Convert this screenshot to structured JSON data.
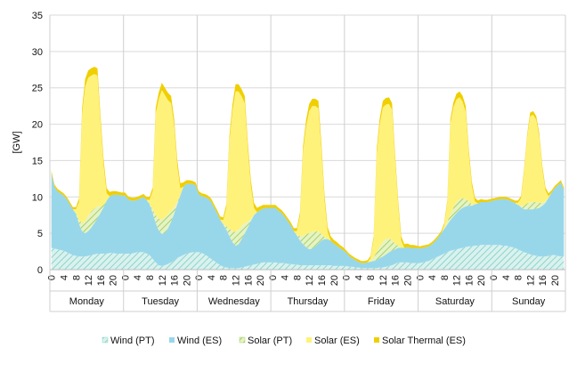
{
  "chart_data": {
    "type": "area",
    "stacked": true,
    "ylabel": "[GW]",
    "ylim": [
      0,
      35
    ],
    "y_ticks": [
      0,
      5,
      10,
      15,
      20,
      25,
      30,
      35
    ],
    "hour_ticks": [
      "0",
      "4",
      "8",
      "12",
      "16",
      "20"
    ],
    "days": [
      "Monday",
      "Tuesday",
      "Wednesday",
      "Thursday",
      "Friday",
      "Saturday",
      "Sunday"
    ],
    "grid": "horizontal and day separators",
    "legend_position": "bottom",
    "colors": {
      "wind_pt": "#bfe9e6",
      "wind_es": "#98d7ea",
      "solar_pt": "#cde6a2",
      "solar_es": "#fff27a",
      "solar_thermal_es": "#f0cf00"
    },
    "x_hours": [
      0,
      1,
      2,
      3,
      4,
      5,
      6,
      7,
      8,
      9,
      10,
      11,
      12,
      13,
      14,
      15,
      16,
      17,
      18,
      19,
      20,
      21,
      22,
      23
    ],
    "series": [
      {
        "name": "Wind (PT)",
        "color": "#bfe9e6",
        "values": [
          [
            3.0,
            2.9,
            2.8,
            2.7,
            2.6,
            2.4,
            2.2,
            2.0,
            1.9,
            1.8,
            1.8,
            1.8,
            1.9,
            2.0,
            2.1,
            2.2,
            2.2,
            2.2,
            2.2,
            2.3,
            2.3,
            2.2,
            2.2,
            2.2
          ],
          [
            2.2,
            2.2,
            2.2,
            2.3,
            2.4,
            2.4,
            2.4,
            2.2,
            2.0,
            1.5,
            1.0,
            0.6,
            0.5,
            0.6,
            0.8,
            1.0,
            1.3,
            1.6,
            1.8,
            2.0,
            2.2,
            2.3,
            2.4,
            2.4
          ],
          [
            2.4,
            2.3,
            2.1,
            1.8,
            1.5,
            1.2,
            0.9,
            0.6,
            0.4,
            0.3,
            0.2,
            0.2,
            0.2,
            0.2,
            0.3,
            0.4,
            0.5,
            0.6,
            0.7,
            0.8,
            0.9,
            1.0,
            1.0,
            1.0
          ],
          [
            1.0,
            1.0,
            0.9,
            0.9,
            0.9,
            0.8,
            0.8,
            0.7,
            0.7,
            0.6,
            0.6,
            0.6,
            0.6,
            0.6,
            0.6,
            0.6,
            0.6,
            0.6,
            0.6,
            0.6,
            0.5,
            0.5,
            0.5,
            0.5
          ],
          [
            0.5,
            0.4,
            0.4,
            0.3,
            0.3,
            0.2,
            0.2,
            0.2,
            0.2,
            0.2,
            0.2,
            0.3,
            0.3,
            0.4,
            0.5,
            0.6,
            0.8,
            1.0,
            1.0,
            1.0,
            1.0,
            0.9,
            0.9,
            0.9
          ],
          [
            0.9,
            1.0,
            1.1,
            1.2,
            1.4,
            1.6,
            1.8,
            2.0,
            2.2,
            2.4,
            2.6,
            2.7,
            2.8,
            2.9,
            3.0,
            3.1,
            3.2,
            3.2,
            3.3,
            3.3,
            3.4,
            3.4,
            3.4,
            3.4
          ],
          [
            3.4,
            3.4,
            3.4,
            3.3,
            3.3,
            3.2,
            3.1,
            3.0,
            2.8,
            2.6,
            2.4,
            2.3,
            2.1,
            2.0,
            1.9,
            1.8,
            1.8,
            1.8,
            1.9,
            2.0,
            2.0,
            1.9,
            1.8,
            1.8
          ]
        ]
      },
      {
        "name": "Wind (ES)",
        "color": "#98d7ea",
        "values": [
          [
            10.3,
            8.5,
            8.0,
            7.8,
            7.6,
            7.3,
            6.8,
            6.3,
            5.8,
            4.5,
            3.5,
            3.2,
            3.4,
            3.8,
            4.3,
            4.9,
            5.6,
            6.4,
            7.3,
            7.8,
            8.0,
            8.1,
            8.1,
            8.0
          ],
          [
            8.0,
            7.5,
            7.3,
            7.2,
            7.2,
            7.4,
            7.6,
            7.4,
            7.0,
            6.3,
            5.4,
            4.8,
            4.4,
            4.5,
            4.9,
            5.6,
            6.4,
            7.4,
            8.4,
            9.4,
            9.6,
            9.5,
            9.4,
            9.2
          ],
          [
            8.0,
            7.8,
            7.9,
            8.0,
            7.9,
            7.4,
            6.9,
            6.3,
            5.8,
            5.2,
            4.4,
            3.6,
            3.1,
            3.3,
            3.9,
            4.6,
            5.3,
            6.1,
            6.8,
            7.1,
            7.3,
            7.4,
            7.5,
            7.5
          ],
          [
            7.5,
            7.5,
            7.2,
            6.9,
            6.4,
            5.9,
            5.3,
            4.6,
            4.0,
            3.4,
            2.9,
            2.5,
            2.2,
            2.3,
            2.6,
            3.0,
            3.4,
            3.6,
            3.6,
            3.4,
            3.1,
            2.8,
            2.5,
            2.2
          ],
          [
            1.9,
            1.5,
            1.2,
            1.0,
            0.8,
            0.7,
            0.7,
            0.8,
            0.9,
            1.0,
            1.1,
            1.3,
            1.5,
            1.7,
            1.9,
            2.0,
            2.0,
            2.0,
            2.0,
            2.0,
            2.1,
            2.1,
            2.1,
            2.1
          ],
          [
            2.0,
            2.0,
            2.0,
            2.0,
            2.1,
            2.3,
            2.6,
            3.0,
            3.4,
            3.8,
            4.2,
            4.6,
            5.0,
            5.3,
            5.5,
            5.6,
            5.6,
            5.6,
            5.7,
            5.8,
            5.9,
            5.9,
            5.9,
            6.0
          ],
          [
            6.1,
            6.2,
            6.3,
            6.4,
            6.4,
            6.4,
            6.3,
            6.2,
            6.1,
            6.0,
            5.9,
            6.0,
            6.2,
            6.3,
            6.5,
            6.7,
            7.0,
            7.4,
            8.0,
            8.6,
            9.2,
            9.7,
            10.2,
            9.2
          ]
        ]
      },
      {
        "name": "Solar (PT)",
        "color": "#cde6a2",
        "values": [
          [
            0,
            0,
            0,
            0,
            0,
            0,
            0,
            0,
            0.1,
            0.5,
            1.1,
            1.7,
            2.1,
            2.2,
            2.0,
            1.6,
            0.9,
            0.3,
            0,
            0,
            0,
            0,
            0,
            0
          ],
          [
            0,
            0,
            0,
            0,
            0,
            0,
            0,
            0,
            0.1,
            0.5,
            1.1,
            1.6,
            2.0,
            2.1,
            1.9,
            1.5,
            0.9,
            0.3,
            0,
            0,
            0,
            0,
            0,
            0
          ],
          [
            0,
            0,
            0,
            0,
            0,
            0,
            0,
            0,
            0.1,
            0.5,
            1.0,
            1.5,
            1.9,
            2.0,
            1.8,
            1.4,
            0.8,
            0.3,
            0,
            0,
            0,
            0,
            0,
            0
          ],
          [
            0,
            0,
            0,
            0,
            0,
            0,
            0,
            0,
            0.1,
            0.6,
            1.2,
            1.8,
            2.2,
            2.3,
            2.1,
            1.6,
            0.9,
            0.3,
            0,
            0,
            0,
            0,
            0,
            0
          ],
          [
            0,
            0,
            0,
            0,
            0,
            0,
            0,
            0,
            0.1,
            0.5,
            1.1,
            1.6,
            2.0,
            2.1,
            1.9,
            1.4,
            0.8,
            0.3,
            0,
            0,
            0,
            0,
            0,
            0
          ],
          [
            0,
            0,
            0,
            0,
            0,
            0,
            0,
            0,
            0.1,
            0.4,
            0.8,
            1.2,
            1.5,
            1.5,
            1.3,
            1.0,
            0.6,
            0.2,
            0,
            0,
            0,
            0,
            0,
            0
          ],
          [
            0,
            0,
            0,
            0,
            0,
            0,
            0,
            0,
            0,
            0.2,
            0.5,
            0.8,
            1.0,
            1.0,
            0.9,
            0.7,
            0.4,
            0.2,
            0,
            0,
            0,
            0,
            0,
            0
          ]
        ]
      },
      {
        "name": "Solar (ES)",
        "color": "#fff27a",
        "values": [
          [
            0,
            0,
            0,
            0,
            0,
            0,
            0,
            0,
            0.5,
            2.5,
            15.0,
            18.5,
            19.0,
            18.7,
            18.5,
            18.0,
            11.5,
            5.5,
            1.0,
            0,
            0,
            0,
            0,
            0
          ],
          [
            0,
            0,
            0,
            0,
            0,
            0,
            0,
            0,
            0.5,
            2.5,
            14.0,
            16.5,
            17.8,
            16.8,
            15.7,
            14.8,
            11.2,
            5.0,
            1.0,
            0,
            0,
            0,
            0,
            0
          ],
          [
            0,
            0,
            0,
            0,
            0,
            0,
            0,
            0,
            0.5,
            2.5,
            12.0,
            16.5,
            19.3,
            19.0,
            17.8,
            16.5,
            10.0,
            4.5,
            1.0,
            0,
            0,
            0,
            0,
            0
          ],
          [
            0,
            0,
            0,
            0,
            0,
            0,
            0,
            0,
            0.5,
            2.8,
            11.5,
            14.8,
            16.8,
            17.3,
            17.2,
            17.0,
            11.5,
            5.0,
            1.0,
            0,
            0,
            0,
            0,
            0
          ],
          [
            0,
            0,
            0,
            0,
            0,
            0,
            0,
            0,
            0.4,
            2.5,
            13.5,
            16.8,
            18.5,
            18.5,
            18.5,
            18.0,
            11.5,
            5.5,
            1.0,
            0,
            0,
            0,
            0,
            0
          ],
          [
            0,
            0,
            0,
            0,
            0,
            0,
            0,
            0,
            0.4,
            2.5,
            12.5,
            13.8,
            14.1,
            14.0,
            13.3,
            12.0,
            6.5,
            2.5,
            0.4,
            0,
            0,
            0,
            0,
            0
          ],
          [
            0,
            0,
            0,
            0,
            0,
            0,
            0,
            0,
            0.3,
            1.0,
            4.5,
            9.0,
            11.8,
            12.0,
            11.3,
            9.0,
            4.5,
            1.5,
            0.2,
            0,
            0,
            0,
            0,
            0
          ]
        ]
      },
      {
        "name": "Solar Thermal (ES)",
        "color": "#f0cf00",
        "values": [
          [
            0.3,
            0.3,
            0.3,
            0.3,
            0.3,
            0.3,
            0.3,
            0.3,
            0.3,
            0.5,
            0.8,
            1.0,
            1.0,
            1.0,
            1.0,
            1.0,
            0.9,
            0.8,
            0.7,
            0.6,
            0.5,
            0.5,
            0.4,
            0.4
          ],
          [
            0.4,
            0.4,
            0.4,
            0.4,
            0.4,
            0.4,
            0.4,
            0.4,
            0.4,
            0.5,
            0.8,
            0.9,
            1.0,
            1.0,
            1.0,
            1.0,
            0.9,
            0.8,
            0.7,
            0.6,
            0.5,
            0.5,
            0.4,
            0.4
          ],
          [
            0.4,
            0.4,
            0.4,
            0.4,
            0.4,
            0.4,
            0.4,
            0.4,
            0.4,
            0.5,
            0.8,
            0.9,
            1.0,
            1.0,
            1.0,
            1.0,
            0.9,
            0.8,
            0.7,
            0.6,
            0.5,
            0.5,
            0.4,
            0.4
          ],
          [
            0.4,
            0.4,
            0.4,
            0.4,
            0.4,
            0.4,
            0.4,
            0.4,
            0.4,
            0.5,
            0.8,
            0.9,
            1.0,
            1.0,
            1.0,
            1.0,
            0.9,
            0.8,
            0.7,
            0.6,
            0.5,
            0.5,
            0.4,
            0.4
          ],
          [
            0.3,
            0.3,
            0.3,
            0.3,
            0.3,
            0.3,
            0.3,
            0.3,
            0.3,
            0.4,
            0.7,
            0.8,
            0.9,
            0.9,
            0.9,
            0.9,
            0.8,
            0.7,
            0.6,
            0.5,
            0.5,
            0.4,
            0.4,
            0.3
          ],
          [
            0.3,
            0.3,
            0.3,
            0.3,
            0.3,
            0.3,
            0.3,
            0.3,
            0.3,
            0.4,
            0.6,
            0.7,
            0.8,
            0.8,
            0.8,
            0.8,
            0.7,
            0.6,
            0.5,
            0.4,
            0.4,
            0.3,
            0.3,
            0.3
          ],
          [
            0.3,
            0.3,
            0.3,
            0.3,
            0.3,
            0.3,
            0.3,
            0.3,
            0.3,
            0.3,
            0.4,
            0.4,
            0.5,
            0.5,
            0.5,
            0.5,
            0.5,
            0.4,
            0.4,
            0.3,
            0.3,
            0.3,
            0.3,
            0.3
          ]
        ]
      }
    ]
  }
}
